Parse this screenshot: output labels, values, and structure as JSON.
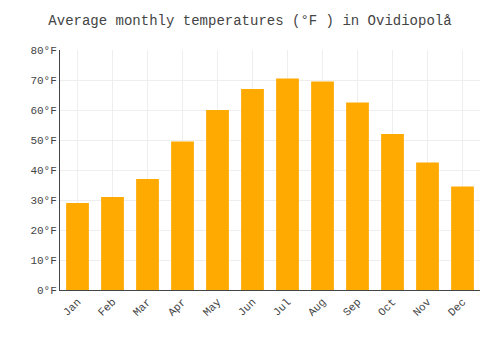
{
  "chart_data": {
    "type": "bar",
    "title": "Average monthly temperatures (°F ) in Ovidiopolå",
    "categories": [
      "Jan",
      "Feb",
      "Mar",
      "Apr",
      "May",
      "Jun",
      "Jul",
      "Aug",
      "Sep",
      "Oct",
      "Nov",
      "Dec"
    ],
    "values": [
      29,
      31,
      37,
      49.5,
      60,
      67,
      70.5,
      69.5,
      62.5,
      52,
      42.5,
      34.5
    ],
    "color": "#FFAA00",
    "ylim": [
      0,
      80
    ],
    "yticks": [
      {
        "value": 0,
        "label": "0°F"
      },
      {
        "value": 10,
        "label": "10°F"
      },
      {
        "value": 20,
        "label": "20°F"
      },
      {
        "value": 30,
        "label": "30°F"
      },
      {
        "value": 40,
        "label": "40°F"
      },
      {
        "value": 50,
        "label": "50°F"
      },
      {
        "value": 60,
        "label": "60°F"
      },
      {
        "value": 70,
        "label": "70°F"
      },
      {
        "value": 80,
        "label": "80°F"
      }
    ],
    "grid": true
  }
}
